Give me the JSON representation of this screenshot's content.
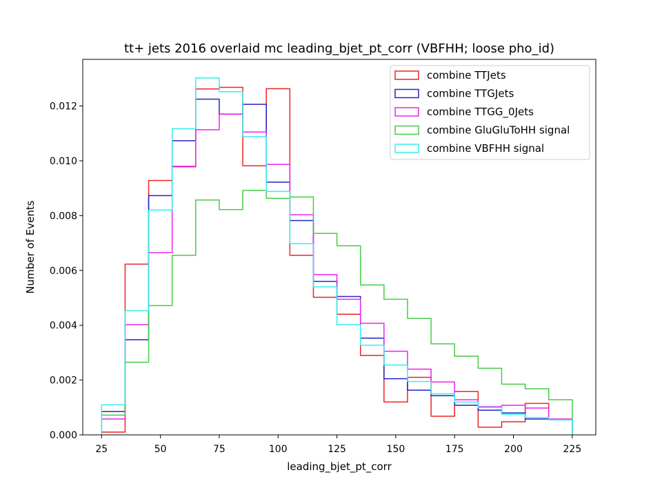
{
  "chart_data": {
    "type": "histogram-step",
    "title": "tt+ jets 2016 overlaid mc leading_bjet_pt_corr (VBFHH; loose pho_id)",
    "xlabel": "leading_bjet_pt_corr",
    "ylabel": "Number of Events",
    "xlim": [
      17,
      235
    ],
    "ylim": [
      0,
      0.0137
    ],
    "bin_edges": [
      25,
      35,
      45,
      55,
      65,
      75,
      85,
      95,
      105,
      115,
      125,
      135,
      145,
      155,
      165,
      175,
      185,
      195,
      205,
      215,
      225
    ],
    "x_ticks": [
      25,
      50,
      75,
      100,
      125,
      150,
      175,
      200,
      225
    ],
    "x_tick_labels": [
      "25",
      "50",
      "75",
      "100",
      "125",
      "150",
      "175",
      "200",
      "225"
    ],
    "y_ticks": [
      0,
      0.002,
      0.004,
      0.006,
      0.008,
      0.01,
      0.012
    ],
    "y_tick_labels": [
      "0.000",
      "0.002",
      "0.004",
      "0.006",
      "0.008",
      "0.010",
      "0.012"
    ],
    "grid": false,
    "legend_position": "top-right",
    "series": [
      {
        "name": "combine TTJets",
        "color": "#ee2222",
        "values": [
          0.0001,
          0.00623,
          0.00928,
          0.00978,
          0.01262,
          0.01268,
          0.00982,
          0.01263,
          0.00655,
          0.00502,
          0.0044,
          0.0029,
          0.0012,
          0.0021,
          0.00068,
          0.00158,
          0.00028,
          0.00048,
          0.00115,
          0.00055
        ]
      },
      {
        "name": "combine TTGJets",
        "color": "#2222cc",
        "values": [
          0.00085,
          0.00347,
          0.00873,
          0.01073,
          0.01225,
          0.0117,
          0.01206,
          0.00922,
          0.00782,
          0.0056,
          0.00505,
          0.00353,
          0.00205,
          0.00163,
          0.00143,
          0.00108,
          0.0009,
          0.0008,
          0.00058,
          0.00055
        ]
      },
      {
        "name": "combine TTGG_0Jets",
        "color": "#ee22ee",
        "values": [
          0.00058,
          0.00402,
          0.00665,
          0.0098,
          0.01113,
          0.0117,
          0.01105,
          0.00987,
          0.00803,
          0.00585,
          0.00495,
          0.00407,
          0.00305,
          0.0024,
          0.00193,
          0.00128,
          0.00103,
          0.00108,
          0.00098,
          0.00058
        ]
      },
      {
        "name": "combine GluGluToHH signal",
        "color": "#44cc44",
        "values": [
          0.00072,
          0.00265,
          0.00472,
          0.00655,
          0.00857,
          0.00822,
          0.00892,
          0.00863,
          0.00868,
          0.00735,
          0.0069,
          0.00547,
          0.00495,
          0.00425,
          0.00332,
          0.00287,
          0.00243,
          0.00185,
          0.00168,
          0.00128
        ]
      },
      {
        "name": "combine VBFHH signal",
        "color": "#33eeee",
        "values": [
          0.0011,
          0.00453,
          0.0082,
          0.01117,
          0.01302,
          0.01252,
          0.01088,
          0.00888,
          0.00698,
          0.0054,
          0.00402,
          0.00327,
          0.00255,
          0.00195,
          0.0015,
          0.0012,
          0.001,
          0.00075,
          0.00063,
          0.00055
        ]
      }
    ]
  }
}
